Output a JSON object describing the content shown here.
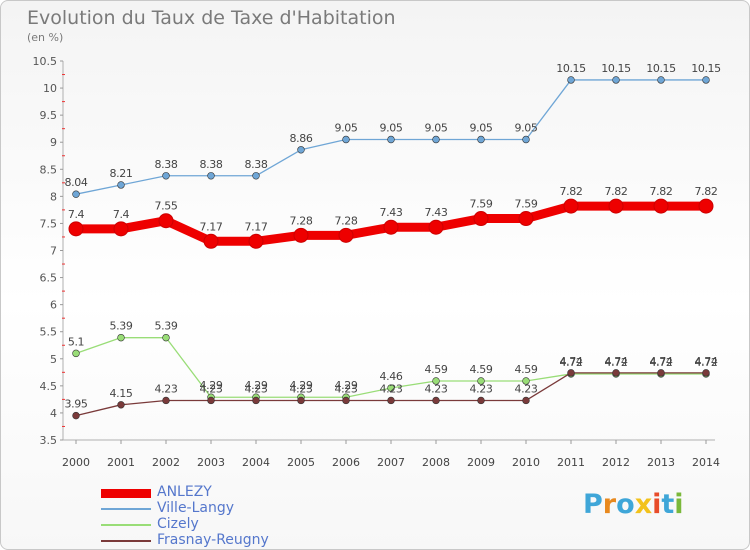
{
  "title": "Evolution du Taux de Taxe d'Habitation",
  "unit": "(en %)",
  "brand": {
    "name": "Proxiti",
    "letters": [
      "P",
      "r",
      "o",
      "x",
      "i",
      "t",
      "i"
    ],
    "letter_colors": [
      "#3fa6d8",
      "#e8891e",
      "#3fa6d8",
      "#f2c21b",
      "#e84c2a",
      "#3fa6d8",
      "#7ab83a"
    ]
  },
  "chart_data": {
    "type": "line",
    "title": "Evolution du Taux de Taxe d'Habitation",
    "ylabel": "(en %)",
    "xlabel": "",
    "ylim": [
      3.5,
      10.5
    ],
    "ytick_step": 0.5,
    "y_ticks": [
      "3.5",
      "4",
      "4.5",
      "5",
      "5.5",
      "6",
      "6.5",
      "7",
      "7.5",
      "8",
      "8.5",
      "9",
      "9.5",
      "10",
      "10.5"
    ],
    "grid": false,
    "legend_position": "bottom-left",
    "x": [
      "2000",
      "2001",
      "2002",
      "2003",
      "2004",
      "2005",
      "2006",
      "2007",
      "2008",
      "2009",
      "2010",
      "2011",
      "2012",
      "2013",
      "2014"
    ],
    "series": [
      {
        "name": "ANLEZY",
        "color": "#ee0000",
        "values": [
          7.4,
          7.4,
          7.55,
          7.17,
          7.17,
          7.28,
          7.28,
          7.43,
          7.43,
          7.59,
          7.59,
          7.82,
          7.82,
          7.82,
          7.82
        ],
        "labels": [
          "7.4",
          "7.4",
          "7.55",
          "7.17",
          "7.17",
          "7.28",
          "7.28",
          "7.43",
          "7.43",
          "7.59",
          "7.59",
          "7.82",
          "7.82",
          "7.82",
          "7.82"
        ]
      },
      {
        "name": "Ville-Langy",
        "color": "#6fa6d6",
        "values": [
          8.04,
          8.21,
          8.38,
          8.38,
          8.38,
          8.86,
          9.05,
          9.05,
          9.05,
          9.05,
          9.05,
          10.15,
          10.15,
          10.15,
          10.15
        ],
        "labels": [
          "8.04",
          "8.21",
          "8.38",
          "8.38",
          "8.38",
          "8.86",
          "9.05",
          "9.05",
          "9.05",
          "9.05",
          "9.05",
          "10.15",
          "10.15",
          "10.15",
          "10.15"
        ]
      },
      {
        "name": "Cizely",
        "color": "#99dd77",
        "values": [
          5.1,
          5.39,
          5.39,
          4.29,
          4.29,
          4.29,
          4.29,
          4.46,
          4.59,
          4.59,
          4.59,
          4.72,
          4.72,
          4.72,
          4.72
        ],
        "labels": [
          "5.1",
          "5.39",
          "5.39",
          "4.29",
          "4.29",
          "4.29",
          "4.29",
          "4.46",
          "4.59",
          "4.59",
          "4.59",
          "4.72",
          "4.72",
          "4.72",
          "4.72"
        ]
      },
      {
        "name": "Frasnay-Reugny",
        "color": "#7a3a3a",
        "values": [
          3.95,
          4.15,
          4.23,
          4.23,
          4.23,
          4.23,
          4.23,
          4.23,
          4.23,
          4.23,
          4.23,
          4.74,
          4.74,
          4.74,
          4.74
        ],
        "labels": [
          "3.95",
          "4.15",
          "4.23",
          "4.23",
          "4.23",
          "4.23",
          "4.23",
          "4.23",
          "4.23",
          "4.23",
          "4.23",
          "4.74",
          "4.74",
          "4.74",
          "4.74"
        ]
      }
    ]
  }
}
